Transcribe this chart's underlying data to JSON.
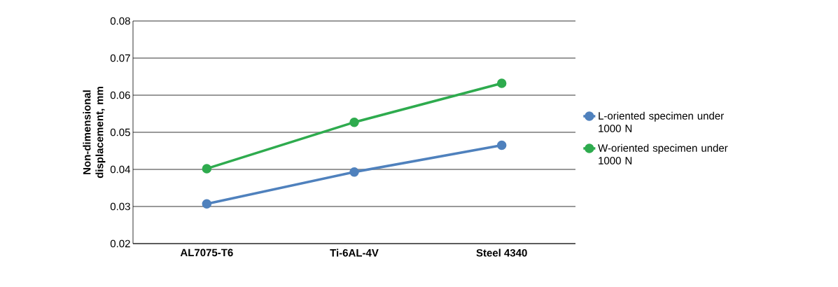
{
  "chart_data": {
    "type": "line",
    "ylabel": "Non-dimensional displacement, mm",
    "categories": [
      "AL7075-T6",
      "Ti-6AL-4V",
      "Steel 4340"
    ],
    "series": [
      {
        "name": "L-oriented specimen under 1000 N",
        "color": "#4f81bd",
        "values": [
          0.0307,
          0.0393,
          0.0465
        ]
      },
      {
        "name": "W-oriented specimen under 1000 N",
        "color": "#2eab4e",
        "values": [
          0.0402,
          0.0527,
          0.0632
        ]
      }
    ],
    "ylim": [
      0.02,
      0.08
    ],
    "yticks": [
      0.02,
      0.03,
      0.04,
      0.05,
      0.06,
      0.07,
      0.08
    ],
    "grid": "y",
    "legend": "right",
    "marker": "circle",
    "line_style": "solid"
  }
}
